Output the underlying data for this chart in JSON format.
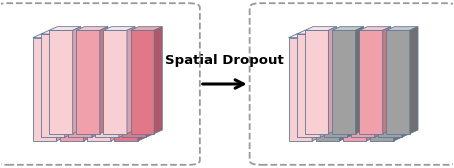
{
  "fig_width": 4.54,
  "fig_height": 1.68,
  "background": "#ffffff",
  "box_border_color": "#999999",
  "arrow_color": "#000000",
  "label_text": "Spatial Dropout",
  "label_fontsize": 9.5,
  "label_fontweight": "bold",
  "pink_face": "#f0a0aa",
  "pink_top": "#f8c8cc",
  "pink_side": "#c87880",
  "pink_light_face": "#f8d0d4",
  "pink_light_top": "#fce8ea",
  "pink_light_side": "#dca0a8",
  "pink_deep_face": "#e07888",
  "pink_deep_top": "#f0a8b0",
  "pink_deep_side": "#b05868",
  "gray_face": "#a0a0a0",
  "gray_top": "#c8c8c8",
  "gray_side": "#707070",
  "edge_color": "#607898",
  "left_col_colors": [
    "light",
    "pink",
    "light",
    "deep"
  ],
  "right_col_colors": [
    "light",
    "gray",
    "pink",
    "gray"
  ],
  "cols": 4,
  "rows": 3
}
